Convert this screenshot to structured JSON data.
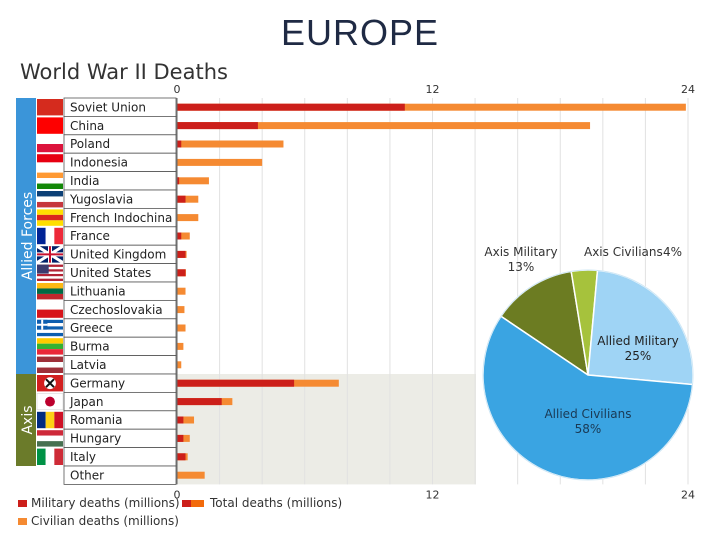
{
  "slide": {
    "title": "EUROPE"
  },
  "chart_data": [
    {
      "type": "bar",
      "title": "World War II Deaths",
      "xlim": [
        0,
        24
      ],
      "xticks": [
        0,
        12,
        24
      ],
      "group_labels": {
        "allied": "Allied Forces",
        "axis": "Axis"
      },
      "categories": [
        "Soviet Union",
        "China",
        "Poland",
        "Indonesia",
        "India",
        "Yugoslavia",
        "French Indochina",
        "France",
        "United Kingdom",
        "United States",
        "Lithuania",
        "Czechoslovakia",
        "Greece",
        "Burma",
        "Latvia",
        "Germany",
        "Japan",
        "Romania",
        "Hungary",
        "Italy",
        "Other"
      ],
      "groups": [
        "allied",
        "allied",
        "allied",
        "allied",
        "allied",
        "allied",
        "allied",
        "allied",
        "allied",
        "allied",
        "allied",
        "allied",
        "allied",
        "allied",
        "allied",
        "axis",
        "axis",
        "axis",
        "axis",
        "axis",
        "other"
      ],
      "series": [
        {
          "name": "Military deaths (millions)",
          "values": [
            10.7,
            3.8,
            0.2,
            0.0,
            0.1,
            0.4,
            0.0,
            0.2,
            0.4,
            0.4,
            0.0,
            0.0,
            0.0,
            0.0,
            0.0,
            5.5,
            2.1,
            0.3,
            0.3,
            0.4,
            0.0
          ]
        },
        {
          "name": "Total deaths (millions)",
          "values": [
            23.9,
            19.4,
            5.0,
            4.0,
            1.5,
            1.0,
            1.0,
            0.6,
            0.45,
            0.42,
            0.4,
            0.35,
            0.4,
            0.3,
            0.2,
            7.6,
            2.6,
            0.8,
            0.6,
            0.5,
            1.3
          ]
        }
      ],
      "legend": {
        "placement": "bottom",
        "items": [
          {
            "label": "Military deaths (millions)",
            "color": "#cc1f1a"
          },
          {
            "label": "Total deaths (millions)",
            "color": "#f26a0b"
          },
          {
            "label": "Civilian deaths (millions)",
            "color": "#f58a32"
          }
        ]
      },
      "colors": {
        "military": "#cc1f1a",
        "civilian": "#f58a32",
        "allied_band": "#3b95d9",
        "axis_band": "#6b7b2a"
      }
    },
    {
      "type": "pie",
      "slices": [
        {
          "label": "Allied Civilians",
          "value": 58,
          "display": "58%",
          "color": "#3aa4e2"
        },
        {
          "label": "Axis Military",
          "value": 13,
          "display": "13%",
          "color": "#6c7c22"
        },
        {
          "label": "Axis Civilians",
          "value": 4,
          "display": "4%",
          "color": "#a6c23c"
        },
        {
          "label": "Allied Military",
          "value": 25,
          "display": "25%",
          "color": "#9fd4f5"
        }
      ]
    }
  ]
}
